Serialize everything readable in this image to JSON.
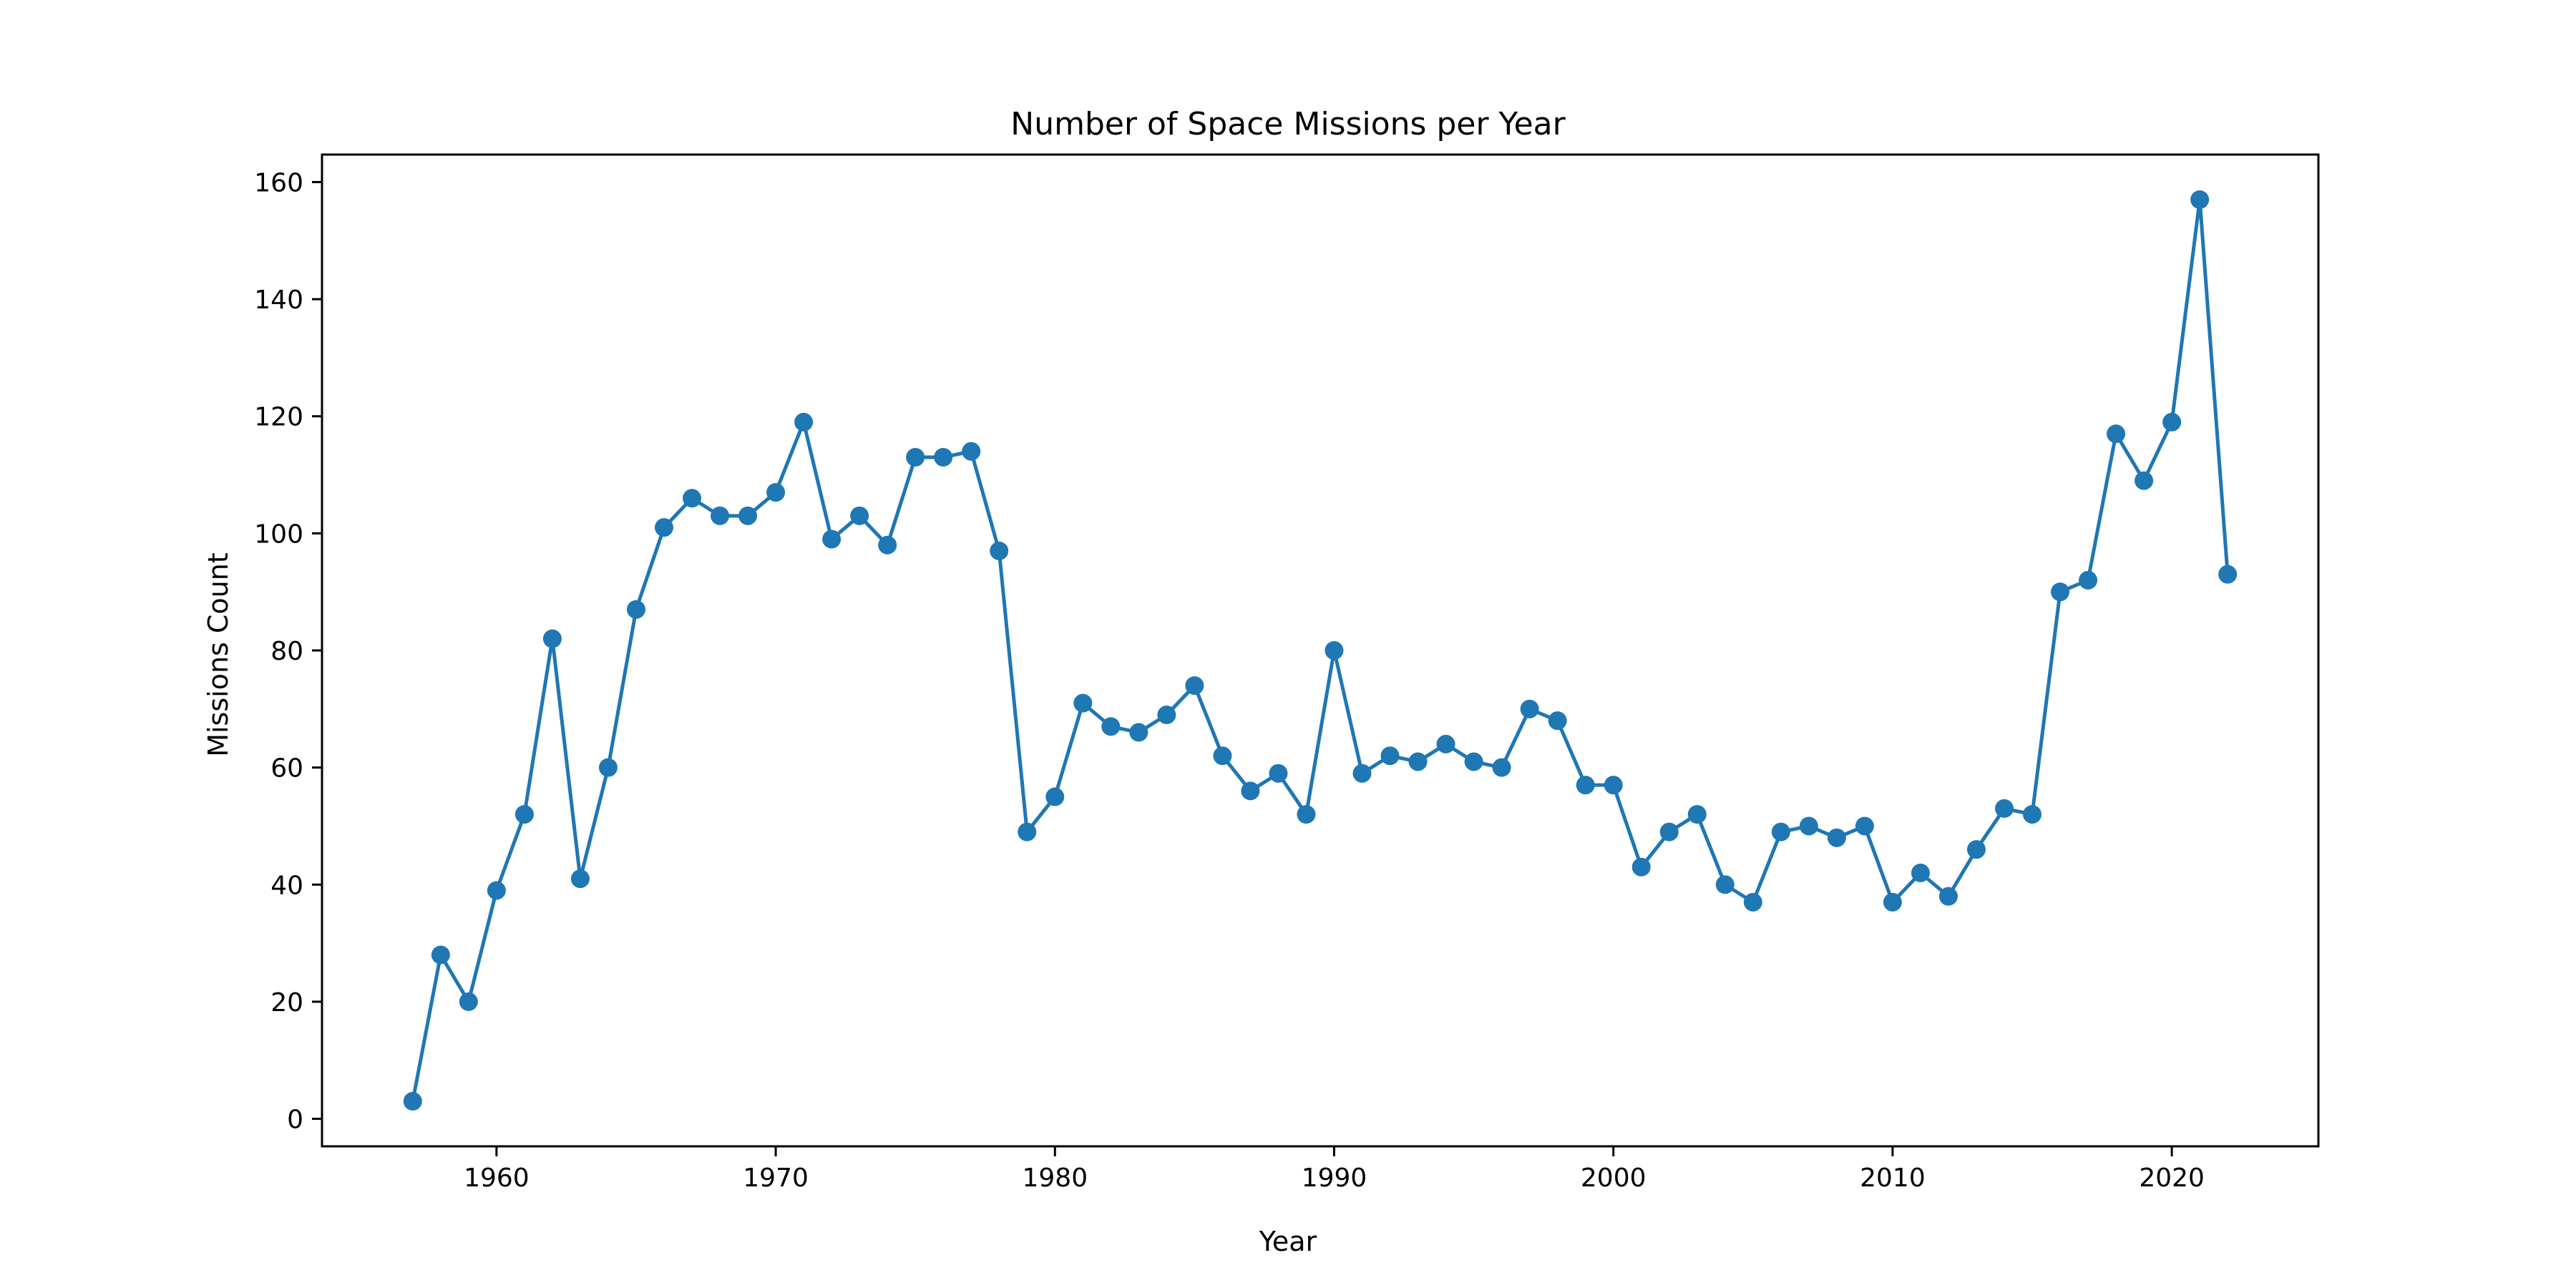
{
  "chart_data": {
    "type": "line",
    "title": "Number of Space Missions per Year",
    "xlabel": "Year",
    "ylabel": "Missions Count",
    "xlim": [
      1953.75,
      2025.25
    ],
    "ylim": [
      -4.7,
      164.7
    ],
    "xticks": [
      1960,
      1970,
      1980,
      1990,
      2000,
      2010,
      2020
    ],
    "yticks": [
      0,
      20,
      40,
      60,
      80,
      100,
      120,
      140,
      160
    ],
    "grid": false,
    "legend": "none",
    "series": [
      {
        "color": "#1f77b4",
        "marker": "circle",
        "x": [
          1957,
          1958,
          1959,
          1960,
          1961,
          1962,
          1963,
          1964,
          1965,
          1966,
          1967,
          1968,
          1969,
          1970,
          1971,
          1972,
          1973,
          1974,
          1975,
          1976,
          1977,
          1978,
          1979,
          1980,
          1981,
          1982,
          1983,
          1984,
          1985,
          1986,
          1987,
          1988,
          1989,
          1990,
          1991,
          1992,
          1993,
          1994,
          1995,
          1996,
          1997,
          1998,
          1999,
          2000,
          2001,
          2002,
          2003,
          2004,
          2005,
          2006,
          2007,
          2008,
          2009,
          2010,
          2011,
          2012,
          2013,
          2014,
          2015,
          2016,
          2017,
          2018,
          2019,
          2020,
          2021,
          2022
        ],
        "y": [
          3,
          28,
          20,
          39,
          52,
          82,
          41,
          60,
          87,
          101,
          106,
          103,
          103,
          107,
          119,
          99,
          103,
          98,
          113,
          113,
          114,
          97,
          49,
          55,
          71,
          67,
          66,
          69,
          74,
          62,
          56,
          59,
          52,
          80,
          59,
          62,
          61,
          64,
          61,
          60,
          70,
          68,
          57,
          57,
          43,
          49,
          52,
          40,
          37,
          49,
          50,
          48,
          50,
          37,
          42,
          38,
          46,
          53,
          52,
          90,
          92,
          117,
          109,
          119,
          157,
          93
        ]
      }
    ]
  }
}
